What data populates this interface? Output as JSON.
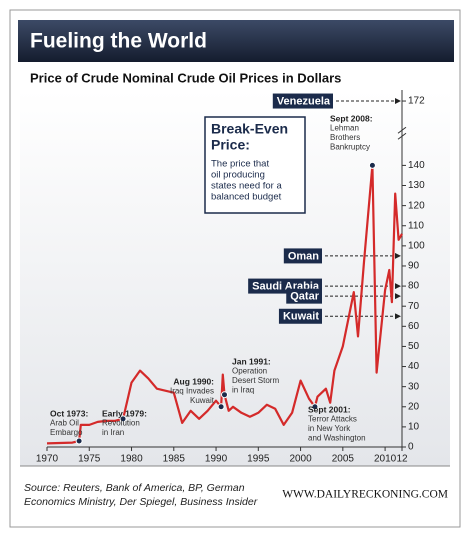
{
  "chart_data": {
    "type": "line",
    "title": "Fueling the World",
    "subtitle": "Price of Crude Nominal Crude Oil Prices in Dollars",
    "color": "#d42a2a",
    "x": [
      1970,
      1973,
      1973.8,
      1974,
      1975,
      1976,
      1977,
      1978,
      1979,
      1980,
      1981,
      1982,
      1983,
      1984,
      1985,
      1986,
      1987,
      1988,
      1989,
      1990,
      1990.6,
      1990.8,
      1991,
      1991.5,
      1992,
      1993,
      1994,
      1995,
      1996,
      1997,
      1998,
      1999,
      2000,
      2001,
      2001.7,
      2002,
      2003,
      2003.5,
      2004,
      2005,
      2006.3,
      2006.8,
      2007.5,
      2008.5,
      2009,
      2010,
      2010.5,
      2010.8,
      2011.2,
      2011.6,
      2012
    ],
    "values": [
      1.8,
      2.2,
      3,
      11,
      11,
      12.5,
      13,
      13,
      14,
      32,
      38,
      34,
      29,
      28,
      27,
      12,
      18,
      14,
      18,
      23,
      20,
      36,
      26,
      18,
      20,
      17,
      15,
      17,
      21,
      19,
      11,
      17,
      33,
      24,
      20,
      25,
      29,
      22,
      38,
      50,
      77,
      55,
      92,
      140,
      37,
      78,
      88,
      72,
      126,
      103,
      106
    ],
    "xlim": [
      1970,
      2012
    ],
    "xticks": [
      1970,
      1975,
      1980,
      1985,
      1990,
      1995,
      2000,
      2005,
      2010,
      {
        "value": 2012,
        "label": "12"
      }
    ],
    "ylim": [
      0,
      175
    ],
    "yticks": [
      0,
      10,
      20,
      30,
      40,
      50,
      60,
      70,
      80,
      90,
      100,
      110,
      120,
      130,
      140,
      172
    ],
    "annotations": [
      {
        "lines": [
          "Oct 1973:",
          "Arab Oil",
          "Embargo"
        ],
        "x": 1973.8,
        "y": 3
      },
      {
        "lines": [
          "Early 1979:",
          "Revolution",
          "in Iran"
        ],
        "x": 1979,
        "y": 14
      },
      {
        "lines": [
          "Aug 1990:",
          "Iraq Invades",
          "Kuwait"
        ],
        "x": 1990.6,
        "y": 20
      },
      {
        "lines": [
          "Jan 1991:",
          "Operation",
          "Desert Storm",
          "in Iraq"
        ],
        "x": 1991,
        "y": 26
      },
      {
        "lines": [
          "Sept 2001:",
          "Terror Attacks",
          "in New York",
          "and Washington"
        ],
        "x": 2001.7,
        "y": 20
      },
      {
        "lines": [
          "Sept 2008:",
          "Lehman",
          "Brothers",
          "Bankruptcy"
        ],
        "x": 2008.5,
        "y": 140
      }
    ],
    "breakeven": [
      {
        "name": "Venezuela",
        "value": 172
      },
      {
        "name": "Oman",
        "value": 95
      },
      {
        "name": "Saudi Arabia",
        "value": 80
      },
      {
        "name": "Qatar",
        "value": 75
      },
      {
        "name": "Kuwait",
        "value": 65
      }
    ],
    "breakeven_box": {
      "title": [
        "Break-Even",
        "Price:"
      ],
      "lines": [
        "The price that",
        "oil producing",
        "states need for a",
        "balanced budget"
      ]
    },
    "source": [
      "Source: Reuters, Bank of America, BP, German",
      "Economics Ministry, Der Spiegel, Business Insider"
    ],
    "website": "WWW.DAILYRECKONING.COM"
  }
}
